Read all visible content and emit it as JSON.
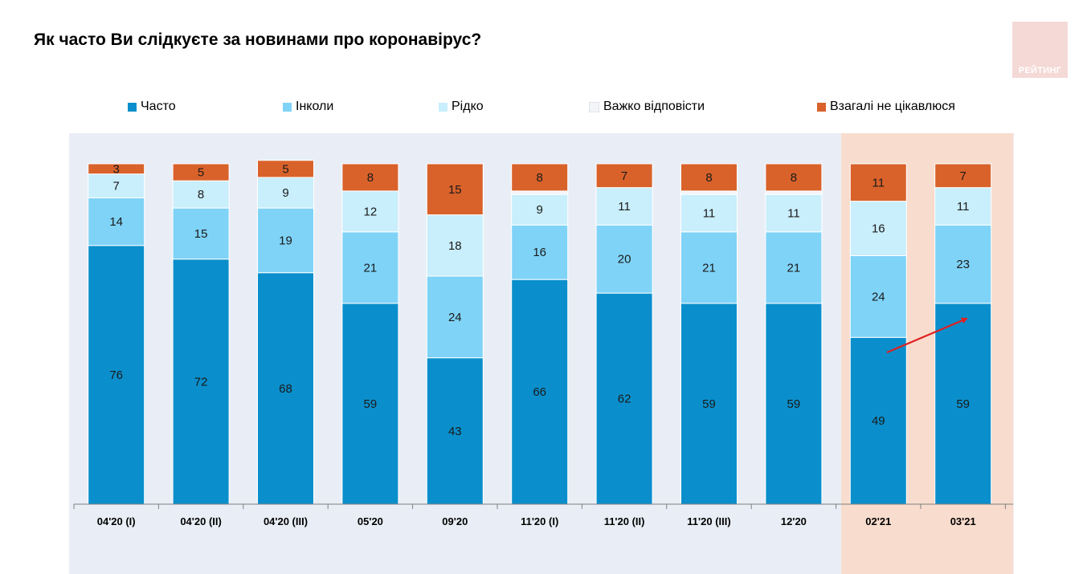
{
  "header": {
    "title": "Як часто Ви слідкуєте за новинами про коронавірус?",
    "logo_text": "РЕЙТИНГ"
  },
  "chart_data": {
    "type": "bar",
    "stacked": true,
    "title": "Як часто Ви слідкуєте за новинами про коронавірус?",
    "categories": [
      "04'20 (I)",
      "04'20 (II)",
      "04'20 (III)",
      "05'20",
      "09'20",
      "11'20 (I)",
      "11'20 (II)",
      "11'20 (III)",
      "12'20",
      "02'21",
      "03'21"
    ],
    "series": [
      {
        "name": "Часто",
        "color": "#0a8fcc",
        "values": [
          76,
          72,
          68,
          59,
          43,
          66,
          62,
          59,
          59,
          49,
          59
        ]
      },
      {
        "name": "Інколи",
        "color": "#7fd3f7",
        "values": [
          14,
          15,
          19,
          21,
          24,
          16,
          20,
          21,
          21,
          24,
          23
        ]
      },
      {
        "name": "Рідко",
        "color": "#c9eefc",
        "values": [
          7,
          8,
          9,
          12,
          18,
          9,
          11,
          11,
          11,
          16,
          11
        ]
      },
      {
        "name": "Важко відповісти",
        "color": "#f2f4f8",
        "values": [
          0,
          0,
          0,
          0,
          0,
          1,
          0,
          1,
          1,
          0,
          0
        ]
      },
      {
        "name": "Взагалі не цікавлюся",
        "color": "#d9622b",
        "values": [
          3,
          5,
          5,
          8,
          15,
          8,
          7,
          8,
          8,
          11,
          7
        ]
      }
    ],
    "ylim": [
      0,
      100
    ],
    "grid": false,
    "legend": "top",
    "highlight_categories": [
      "02'21",
      "03'21"
    ],
    "annotation": "arrow from 02'21 to 03'21 (Часто)"
  }
}
